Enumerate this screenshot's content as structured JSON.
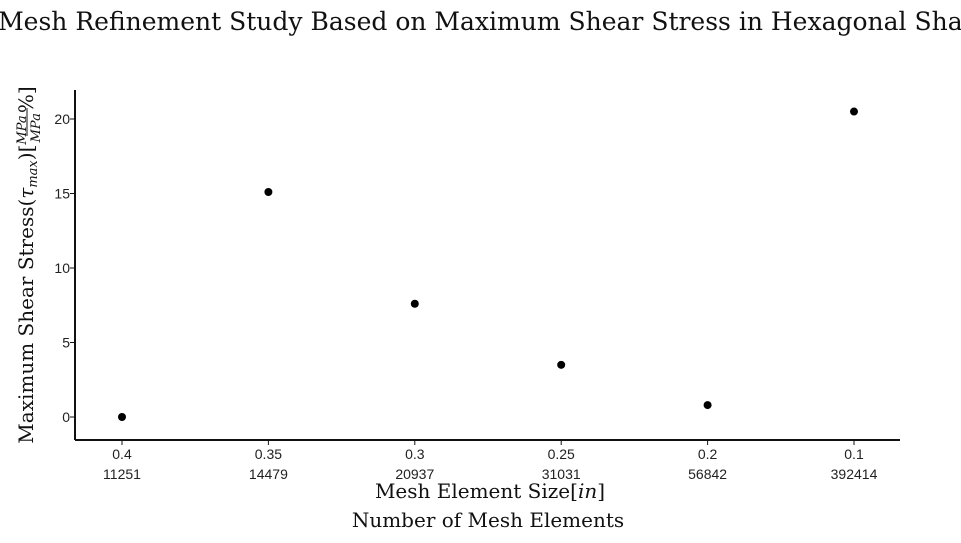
{
  "chart_data": {
    "type": "scatter",
    "title": "Mesh Refinement Study Based on Maximum Shear Stress in Hexagonal Shaft",
    "xlabel": "Mesh Element Size",
    "xlabel_unit": "in",
    "xlabel2": "Number of Mesh Elements",
    "ylabel": "Maximum Shear Stress",
    "ylabel_symbol": "τ",
    "ylabel_symbol_sub": "max",
    "ylabel_unit_num": "MPa",
    "ylabel_unit_den": "MPa",
    "ylabel_unit_suffix": "%",
    "categories": [
      "0.4",
      "0.35",
      "0.3",
      "0.25",
      "0.2",
      "0.1"
    ],
    "categories_secondary": [
      "11251",
      "14479",
      "20937",
      "31031",
      "56842",
      "392414"
    ],
    "values": [
      0.0,
      15.1,
      7.6,
      3.5,
      0.8,
      20.5
    ],
    "yticks": [
      0,
      5,
      10,
      15,
      20
    ],
    "ylim": [
      -1.5,
      22
    ],
    "grid": false,
    "legend": "none",
    "point_color": "#000000"
  }
}
